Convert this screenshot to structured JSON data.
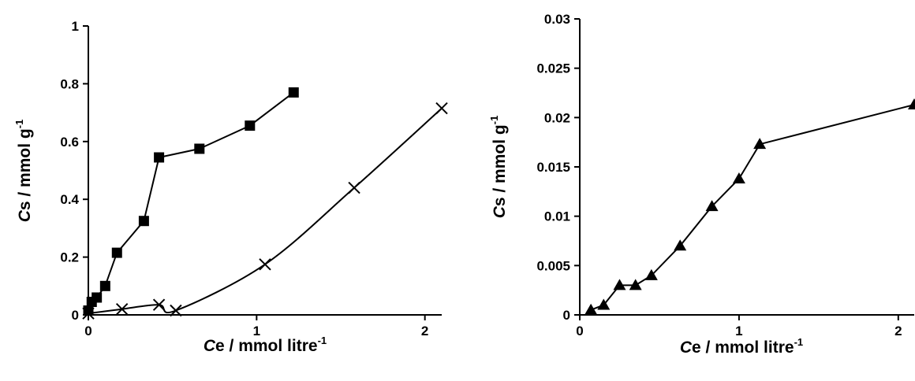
{
  "chart_data": [
    {
      "type": "line",
      "xlabel": {
        "italic": "C",
        "main": "e / mmol litre",
        "sup": "-1"
      },
      "ylabel": {
        "italic": "C",
        "main": "s  / mmol g",
        "sup": "-1"
      },
      "xlim": [
        0,
        2.1
      ],
      "ylim": [
        0,
        1
      ],
      "xticks": [
        "0",
        "1",
        "2"
      ],
      "yticks": [
        "0",
        "0.2",
        "0.4",
        "0.6",
        "0.8",
        "1"
      ],
      "grid": false,
      "series": [
        {
          "marker": "square",
          "x": [
            0,
            0.02,
            0.05,
            0.1,
            0.17,
            0.33,
            0.42,
            0.66,
            0.96,
            1.22
          ],
          "y": [
            0.015,
            0.045,
            0.06,
            0.1,
            0.215,
            0.325,
            0.545,
            0.575,
            0.655,
            0.77
          ]
        },
        {
          "marker": "x",
          "x": [
            0,
            0.2,
            0.42,
            0.52,
            1.05,
            1.58,
            2.1
          ],
          "y": [
            0.005,
            0.02,
            0.035,
            0.015,
            0.175,
            0.44,
            0.715
          ]
        }
      ]
    },
    {
      "type": "line",
      "xlabel": {
        "italic": "C",
        "main": "e / mmol litre",
        "sup": "-1"
      },
      "ylabel": {
        "italic": "C",
        "main": "s  / mmol g",
        "sup": "-1"
      },
      "xlim": [
        0,
        2.1
      ],
      "ylim": [
        0,
        0.03
      ],
      "xticks": [
        "0",
        "1",
        "2"
      ],
      "yticks": [
        "0",
        "0.005",
        "0.01",
        "0.015",
        "0.02",
        "0.025",
        "0.03"
      ],
      "grid": false,
      "series": [
        {
          "marker": "triangle",
          "x": [
            0.07,
            0.15,
            0.25,
            0.35,
            0.45,
            0.63,
            0.83,
            1.0,
            1.13,
            2.1
          ],
          "y": [
            0.0005,
            0.001,
            0.003,
            0.003,
            0.004,
            0.007,
            0.011,
            0.0138,
            0.0173,
            0.0213
          ]
        }
      ]
    }
  ]
}
